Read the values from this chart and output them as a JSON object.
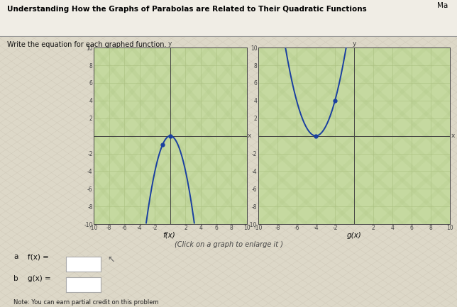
{
  "title": "Understanding How the Graphs of Parabolas are Related to Their Quadratic Functions",
  "title_right": "Ma",
  "subtitle": "Write the equation for each graphed function.",
  "click_note": "(Click on a graph to enlarge it )",
  "graph_f": {
    "label": "f(x)",
    "color": "#1a3fa0",
    "xlim": [
      -10,
      10
    ],
    "ylim": [
      -10,
      10
    ],
    "xticks": [
      -10,
      -8,
      -6,
      -4,
      -2,
      2,
      4,
      6,
      8,
      10
    ],
    "yticks": [
      -10,
      -8,
      -6,
      -4,
      -2,
      2,
      4,
      6,
      8,
      10
    ],
    "highlight_points": [
      [
        0,
        0
      ],
      [
        -1,
        -1
      ]
    ]
  },
  "graph_g": {
    "label": "g(x)",
    "color": "#1a3fa0",
    "xlim": [
      -10,
      10
    ],
    "ylim": [
      -10,
      10
    ],
    "xticks": [
      -10,
      -8,
      -6,
      -4,
      -2,
      2,
      4,
      6,
      8,
      10
    ],
    "yticks": [
      -10,
      -8,
      -6,
      -4,
      -2,
      2,
      4,
      6,
      8,
      10
    ],
    "highlight_points": [
      [
        -4,
        0
      ],
      [
        -2,
        4
      ]
    ]
  },
  "answer_a_label": "a",
  "answer_b_label": "b",
  "answer_f": "f(x) =",
  "answer_g": "g(x) =",
  "note": "Note: You can earn partial credit on this problem",
  "bg_stripe1": "#c8d9a8",
  "bg_stripe2": "#d8e8b8",
  "graph_bg1": "#c5d9a0",
  "graph_bg2": "#d0e4ac",
  "grid_color": "#aac080",
  "axis_color": "#444444",
  "page_bg": "#ddd8c8",
  "page_bg2": "#e8e4d8",
  "title_color": "#000000",
  "line_color": "#888888",
  "tick_fontsize": 5.5,
  "label_fontsize": 7.5,
  "note_fontsize": 6.5
}
